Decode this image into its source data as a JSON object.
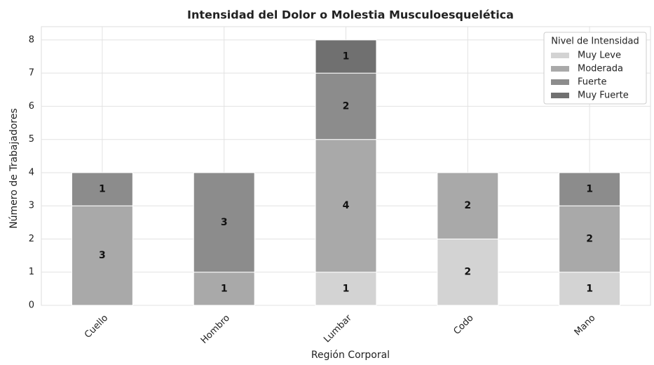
{
  "chart_data": {
    "type": "stacked_bar",
    "title": "Intensidad del Dolor o Molestia Musculoesquelética",
    "x_label": "Región Corporal",
    "y_label": "Número de Trabajadores",
    "legend_title": "Nivel de Intensidad",
    "legend_position": "upper right",
    "categories": [
      "Cuello",
      "Hombro",
      "Lumbar",
      "Codo",
      "Mano"
    ],
    "series": [
      {
        "name": "Muy Leve",
        "color": "#d3d3d3",
        "values": [
          0,
          0,
          1,
          2,
          1
        ]
      },
      {
        "name": "Moderada",
        "color": "#a9a9a9",
        "values": [
          3,
          1,
          4,
          2,
          2
        ]
      },
      {
        "name": "Fuerte",
        "color": "#8c8c8c",
        "values": [
          1,
          3,
          2,
          0,
          1
        ]
      },
      {
        "name": "Muy Fuerte",
        "color": "#707070",
        "values": [
          0,
          0,
          1,
          0,
          0
        ]
      }
    ],
    "ylim": [
      0,
      8.4
    ],
    "yticks": [
      0,
      1,
      2,
      3,
      4,
      5,
      6,
      7,
      8
    ],
    "grid": true
  }
}
